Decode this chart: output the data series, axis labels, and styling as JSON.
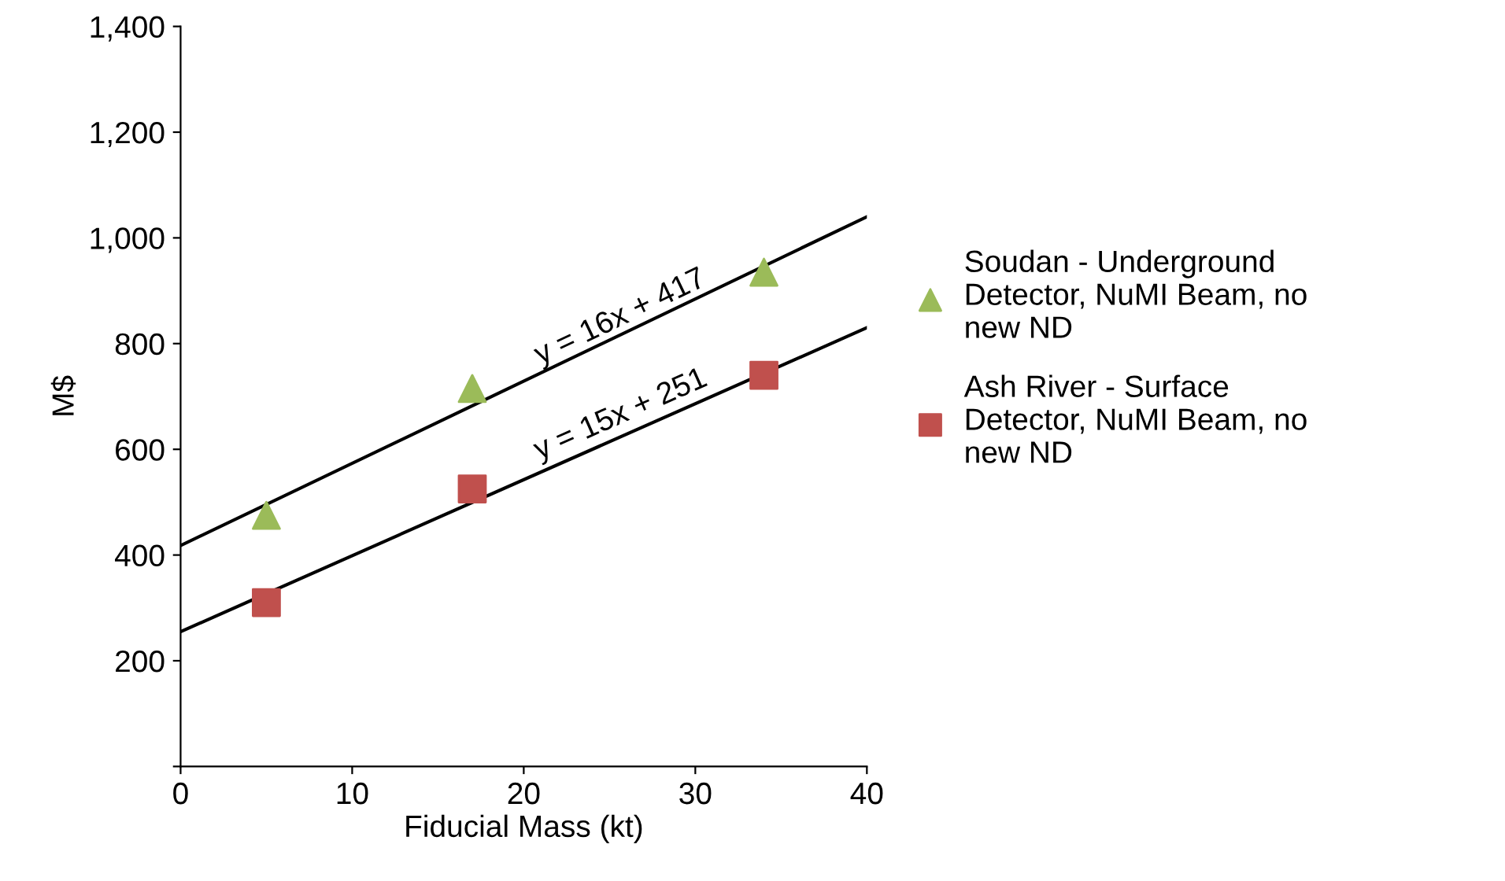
{
  "chart_data": {
    "type": "scatter",
    "xlabel": "Fiducial Mass (kt)",
    "ylabel": "M$",
    "xlim": [
      0,
      40
    ],
    "xticks": [
      0,
      10,
      20,
      30,
      40
    ],
    "ylim": [
      0,
      1400
    ],
    "yticks": [
      {
        "value": 0,
        "label": null
      },
      {
        "value": 200,
        "label": "200"
      },
      {
        "value": 400,
        "label": "400"
      },
      {
        "value": 600,
        "label": "600"
      },
      {
        "value": 800,
        "label": "800"
      },
      {
        "value": 1000,
        "label": "1,000"
      },
      {
        "value": 1200,
        "label": "1,200"
      },
      {
        "value": 1400,
        "label": "1,400"
      }
    ],
    "grid": false,
    "legend": "right",
    "series": [
      {
        "name": "Soudan - Underground Detector, NuMI Beam, no new ND",
        "color": "#9bbb59",
        "marker": "triangle",
        "x": [
          5,
          17,
          34
        ],
        "values": [
          475,
          715,
          935
        ]
      },
      {
        "name": "Ash River - Surface Detector, NuMI Beam, no new ND",
        "color": "#c0504d",
        "marker": "square",
        "x": [
          5,
          17,
          34
        ],
        "values": [
          310,
          525,
          740
        ]
      },
      {
        "type": "line",
        "color": "#000000",
        "marker": "none",
        "x": [
          0,
          40
        ],
        "values": [
          418,
          1040
        ]
      },
      {
        "type": "line",
        "color": "#000000",
        "marker": "none",
        "x": [
          0,
          40
        ],
        "values": [
          255,
          830
        ]
      }
    ],
    "annotations": [
      {
        "text": "y = 16x + 417",
        "x": 26,
        "y": 825
      },
      {
        "text": "y = 15x + 251",
        "x": 26,
        "y": 640
      }
    ]
  }
}
